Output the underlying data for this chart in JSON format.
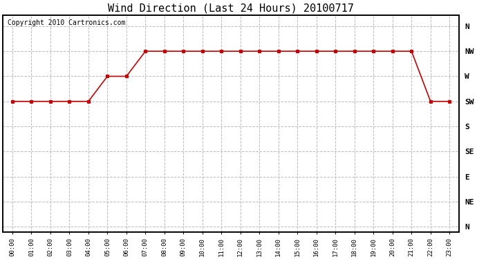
{
  "title": "Wind Direction (Last 24 Hours) 20100717",
  "copyright": "Copyright 2010 Cartronics.com",
  "hours": [
    0,
    1,
    2,
    3,
    4,
    5,
    6,
    7,
    8,
    9,
    10,
    11,
    12,
    13,
    14,
    15,
    16,
    17,
    18,
    19,
    20,
    21,
    22,
    23
  ],
  "hour_labels": [
    "00:00",
    "01:00",
    "02:00",
    "03:00",
    "04:00",
    "05:00",
    "06:00",
    "07:00",
    "08:00",
    "09:00",
    "10:00",
    "11:00",
    "12:00",
    "13:00",
    "14:00",
    "15:00",
    "16:00",
    "17:00",
    "18:00",
    "19:00",
    "20:00",
    "21:00",
    "22:00",
    "23:00"
  ],
  "wind_values": [
    225,
    225,
    225,
    225,
    225,
    270,
    270,
    315,
    315,
    315,
    315,
    315,
    315,
    315,
    315,
    315,
    315,
    315,
    315,
    315,
    315,
    315,
    225,
    225
  ],
  "line_color": "#cc0000",
  "marker_color": "#cc0000",
  "bg_color": "#ffffff",
  "grid_color": "#bbbbbb",
  "ytick_labels": [
    "N",
    "NW",
    "W",
    "SW",
    "S",
    "SE",
    "E",
    "NE",
    "N"
  ],
  "ytick_values": [
    360,
    315,
    270,
    225,
    180,
    135,
    90,
    45,
    0
  ],
  "ylim": [
    -10,
    380
  ],
  "xlim": [
    -0.5,
    23.5
  ],
  "title_fontsize": 11,
  "copyright_fontsize": 7
}
